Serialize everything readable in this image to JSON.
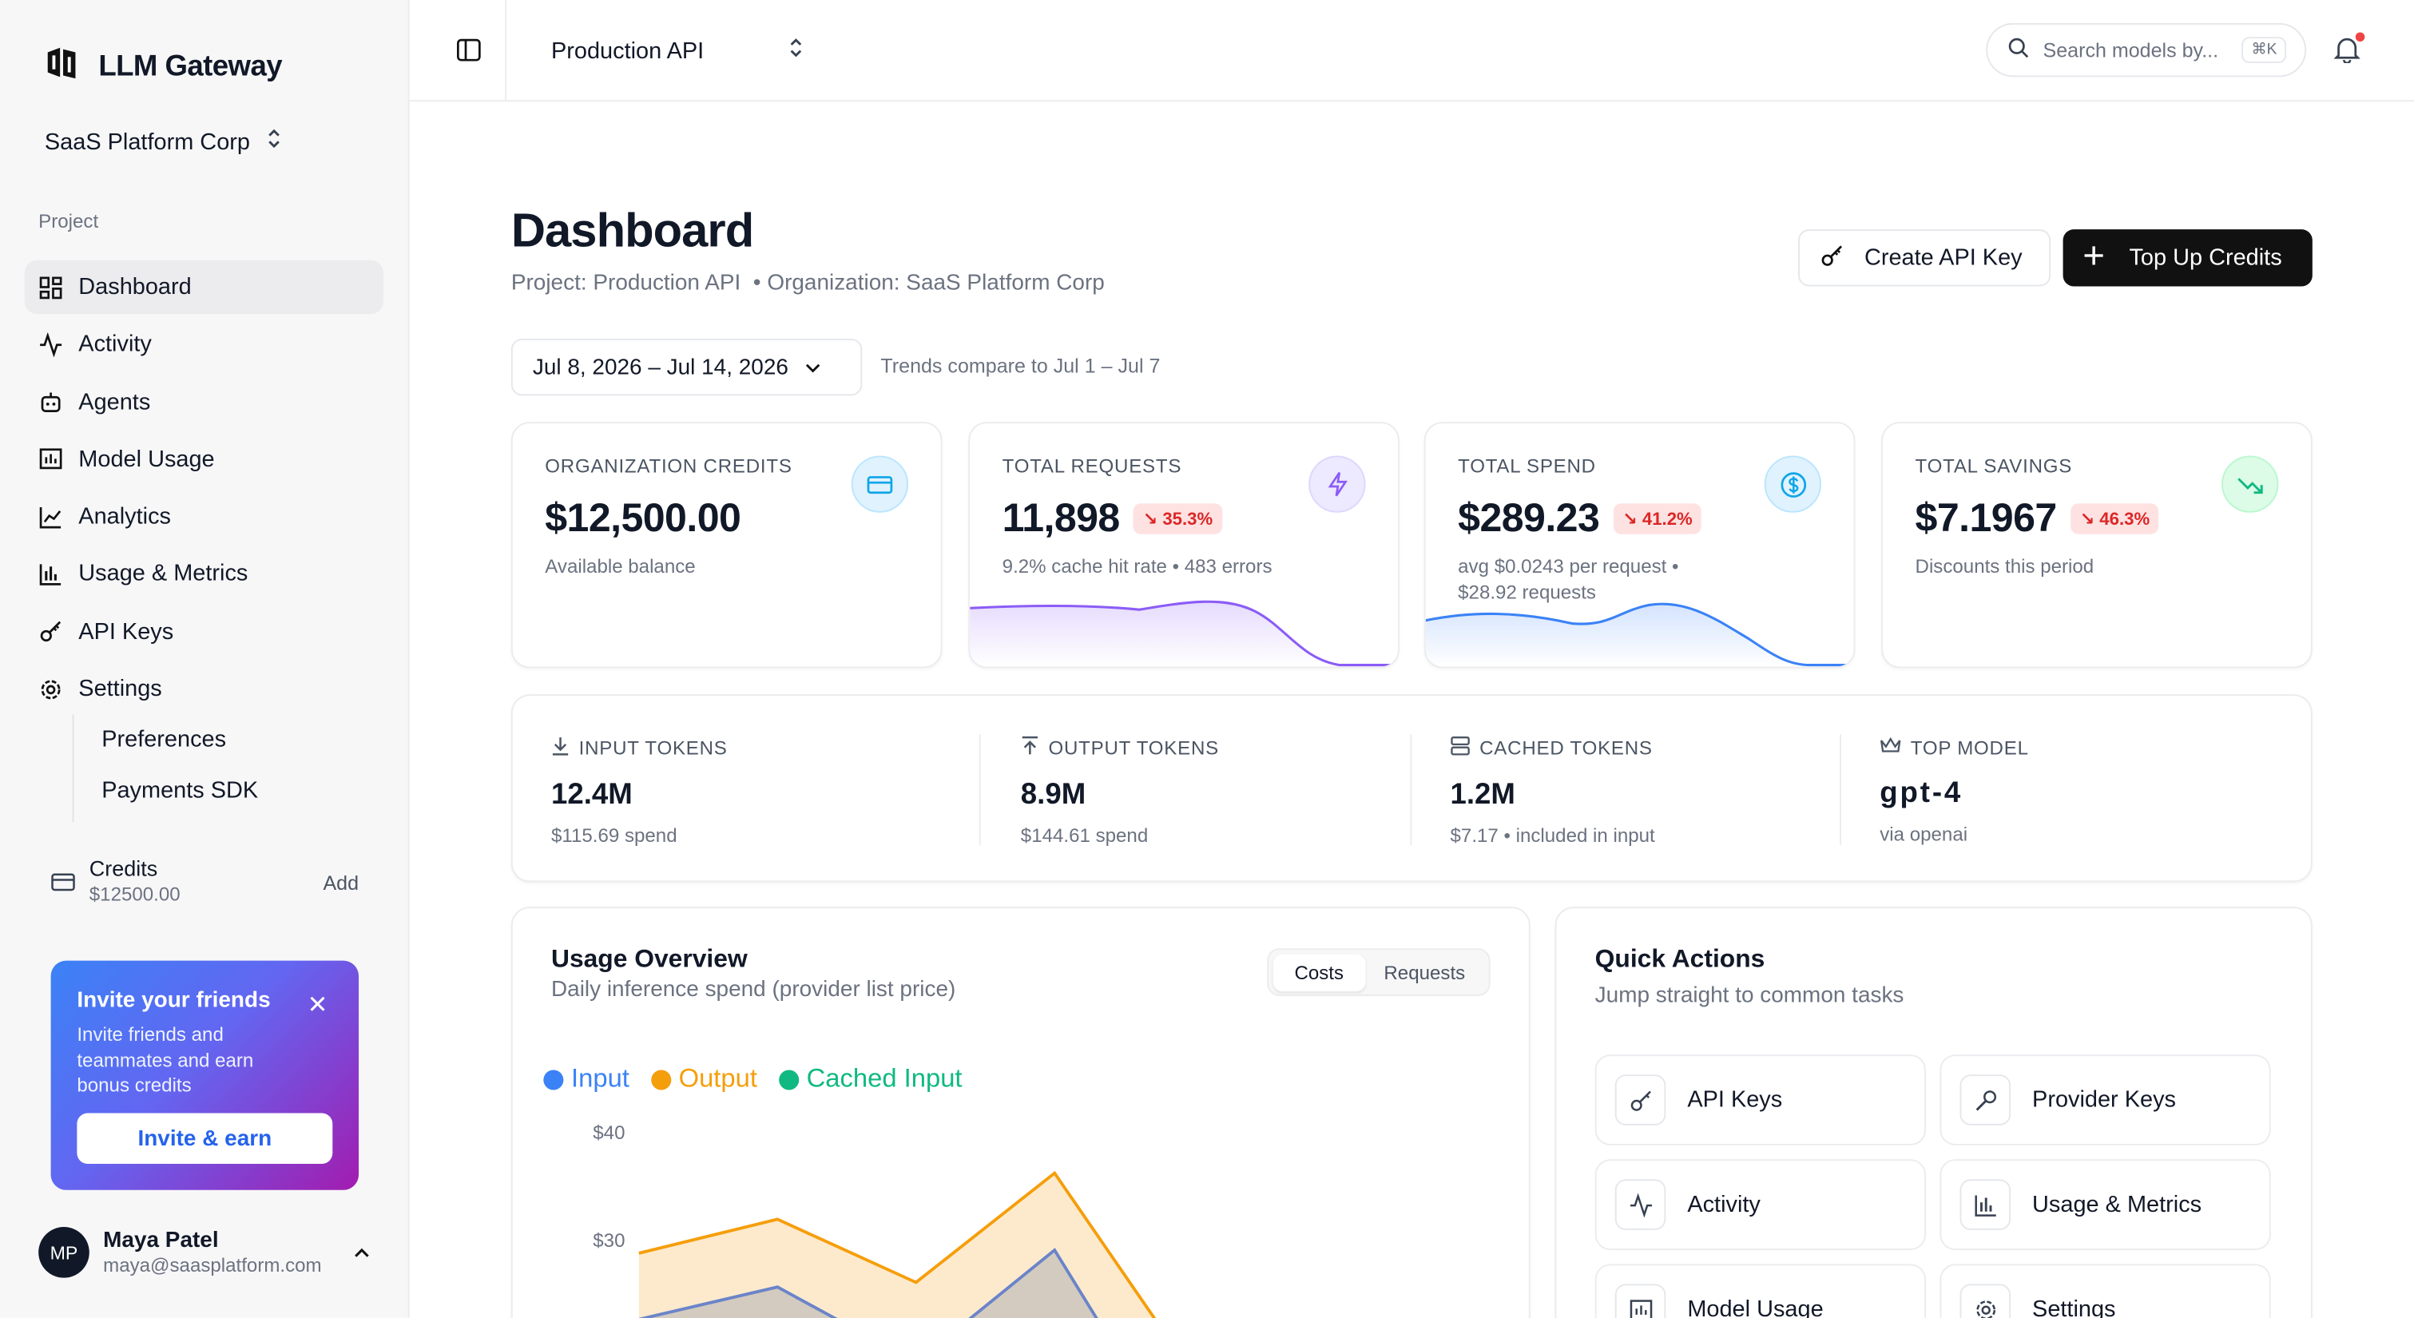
{
  "brand": {
    "name": "LLM Gateway"
  },
  "org": {
    "name": "SaaS Platform Corp"
  },
  "sidebar": {
    "section_label": "Project",
    "items": [
      {
        "label": "Dashboard",
        "icon": "dashboard-icon",
        "active": true
      },
      {
        "label": "Activity",
        "icon": "activity-icon"
      },
      {
        "label": "Agents",
        "icon": "bot-icon"
      },
      {
        "label": "Model Usage",
        "icon": "model-usage-icon"
      },
      {
        "label": "Analytics",
        "icon": "analytics-icon"
      },
      {
        "label": "Usage & Metrics",
        "icon": "bar-chart-icon"
      },
      {
        "label": "API Keys",
        "icon": "key-icon"
      },
      {
        "label": "Settings",
        "icon": "gear-icon"
      }
    ],
    "sub_items": [
      {
        "label": "Preferences"
      },
      {
        "label": "Payments SDK"
      }
    ],
    "credits": {
      "title": "Credits",
      "amount": "$12500.00",
      "add_label": "Add"
    },
    "invite": {
      "title": "Invite your friends",
      "description": "Invite friends and teammates and earn bonus credits",
      "button": "Invite & earn"
    },
    "user": {
      "initials": "MP",
      "name": "Maya Patel",
      "email": "maya@saasplatform.com"
    }
  },
  "topbar": {
    "project": "Production API",
    "search_placeholder": "Search models by...",
    "search_shortcut": "⌘K"
  },
  "page": {
    "title": "Dashboard",
    "project_line": "Project: Production API",
    "org_line": "• Organization: SaaS Platform Corp",
    "create_key_label": "Create API Key",
    "top_up_label": "Top Up Credits",
    "date_range": "Jul 8, 2026 – Jul 14, 2026",
    "trend_note": "Trends compare to Jul 1 – Jul 7"
  },
  "kpis": [
    {
      "label": "ORGANIZATION CREDITS",
      "value": "$12,500.00",
      "badge": "",
      "sub": "Available balance",
      "icon": "credit-card-icon",
      "icon_bg": "#e0f2fe",
      "icon_color": "#0ea5e9"
    },
    {
      "label": "TOTAL REQUESTS",
      "value": "11,898",
      "badge": "↘ 35.3%",
      "sub": "9.2% cache hit rate • 483 errors",
      "icon": "lightning-icon",
      "icon_bg": "#ede9fe",
      "icon_color": "#8b5cf6"
    },
    {
      "label": "TOTAL SPEND",
      "value": "$289.23",
      "badge": "↘ 41.2%",
      "sub": "avg $0.0243 per request • $28.92 requests",
      "icon": "dollar-circle-icon",
      "icon_bg": "#e0f2fe",
      "icon_color": "#0ea5e9"
    },
    {
      "label": "TOTAL SAVINGS",
      "value": "$7.1967",
      "badge": "↘ 46.3%",
      "sub": "Discounts this period",
      "icon": "trending-down-icon",
      "icon_bg": "#dcfce7",
      "icon_color": "#10b981"
    }
  ],
  "tokens": [
    {
      "label": "INPUT TOKENS",
      "value": "12.4M",
      "sub": "$115.69 spend",
      "icon": "arrow-down-icon"
    },
    {
      "label": "OUTPUT TOKENS",
      "value": "8.9M",
      "sub": "$144.61 spend",
      "icon": "arrow-up-icon"
    },
    {
      "label": "CACHED TOKENS",
      "value": "1.2M",
      "sub": "$7.17 • included in input",
      "icon": "database-icon"
    },
    {
      "label": "TOP MODEL",
      "value": "gpt-4",
      "sub": "via openai",
      "icon": "crown-icon"
    }
  ],
  "usage": {
    "title": "Usage Overview",
    "subtitle": "Daily inference spend (provider list price)",
    "tabs": [
      "Costs",
      "Requests"
    ],
    "active_tab": "Costs"
  },
  "chart_data": {
    "type": "area",
    "series": [
      {
        "name": "Input",
        "color": "#3b82f6"
      },
      {
        "name": "Output",
        "color": "#f59e0b"
      },
      {
        "name": "Cached Input",
        "color": "#10b981"
      }
    ],
    "y_ticks": [
      "$40",
      "$30"
    ]
  },
  "quick_actions": {
    "title": "Quick Actions",
    "subtitle": "Jump straight to common tasks",
    "items": [
      {
        "label": "API Keys",
        "icon": "key-icon"
      },
      {
        "label": "Provider Keys",
        "icon": "wrench-icon"
      },
      {
        "label": "Activity",
        "icon": "activity-icon"
      },
      {
        "label": "Usage & Metrics",
        "icon": "bar-chart-icon"
      },
      {
        "label": "Model Usage",
        "icon": "model-usage-icon"
      },
      {
        "label": "Settings",
        "icon": "gear-icon"
      }
    ]
  }
}
